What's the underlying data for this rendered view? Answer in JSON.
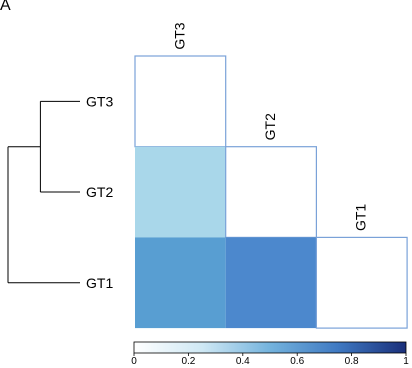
{
  "panel_label": "A",
  "chart_data": {
    "type": "heatmap",
    "labels": [
      "GT3",
      "GT2",
      "GT1"
    ],
    "matrix": [
      [
        0.0,
        null,
        null
      ],
      [
        0.25,
        0.0,
        null
      ],
      [
        0.53,
        0.72,
        0.0
      ]
    ],
    "dendrogram": {
      "merges": [
        {
          "join": [
            "GT3",
            "GT2"
          ],
          "height": 0.55
        },
        {
          "join": [
            "GT3+GT2",
            "GT1"
          ],
          "height": 1.0
        }
      ]
    },
    "colorbar": {
      "range": [
        0,
        1
      ],
      "ticks": [
        "0",
        "0.2",
        "0.4",
        "0.6",
        "0.8",
        "1"
      ],
      "colors": [
        "#ffffff",
        "#a9d7ea",
        "#5aa2d3",
        "#4a84cc",
        "#1e3c8a"
      ]
    },
    "cell_border_color": "#7aa2d8"
  }
}
